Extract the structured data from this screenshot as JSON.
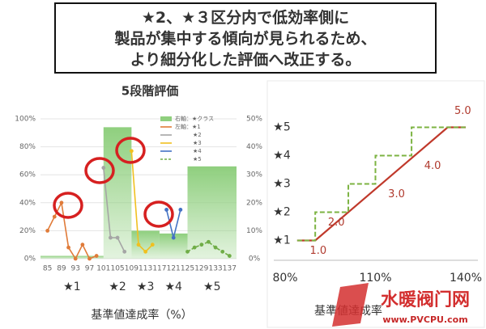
{
  "header": {
    "lines": [
      [
        {
          "text": "★2、★３区分内で"
        },
        {
          "text": "低効率側に",
          "bold": true
        }
      ],
      [
        {
          "text": "製品",
          "bold": true
        },
        {
          "text": "が"
        },
        {
          "text": "集中",
          "bold": true
        },
        {
          "text": "する傾向が見られるため、"
        }
      ],
      [
        {
          "text": "より"
        },
        {
          "text": "細分化",
          "bold": true
        },
        {
          "text": "した"
        },
        {
          "text": "評価",
          "bold": true
        },
        {
          "text": "へ"
        },
        {
          "text": "改正",
          "bold": true
        },
        {
          "text": "する。"
        }
      ]
    ]
  },
  "chart_data": [
    {
      "type": "combo",
      "title": "5段階評価",
      "x_label": "基準値達成率（%）",
      "xlim": [
        83,
        139
      ],
      "xticks": [
        85,
        89,
        93,
        97,
        101,
        105,
        109,
        113,
        117,
        121,
        125,
        129,
        133,
        137
      ],
      "ylim": [
        0,
        100
      ],
      "yticks": [
        {
          "value": 0,
          "label": "0%"
        },
        {
          "value": 20,
          "label": "20%"
        },
        {
          "value": 40,
          "label": "40%"
        },
        {
          "value": 60,
          "label": "60%"
        },
        {
          "value": 80,
          "label": "80%"
        },
        {
          "value": 100,
          "label": "100%"
        }
      ],
      "y2lim": [
        0,
        50
      ],
      "y2ticks": [
        {
          "value": 0,
          "label": "0%"
        },
        {
          "value": 10,
          "label": "10%"
        },
        {
          "value": 20,
          "label": "20%"
        },
        {
          "value": 30,
          "label": "30%"
        },
        {
          "value": 40,
          "label": "40%"
        },
        {
          "value": 50,
          "label": "50%"
        }
      ],
      "categories": [
        "★1",
        "★2",
        "★3",
        "★4",
        "★5"
      ],
      "bars": {
        "name": "右軸：★クラス",
        "color": "#8fcf7e",
        "axis": "y2",
        "bins": [
          83,
          101,
          109,
          117,
          125,
          139
        ],
        "values": [
          1,
          47,
          10,
          9,
          33
        ]
      },
      "series": [
        {
          "name": "左軸：★1",
          "color": "#e07b39",
          "x": [
            85,
            87,
            89,
            91,
            93,
            95,
            97,
            99
          ],
          "values": [
            20,
            30,
            40,
            8,
            0,
            10,
            0,
            2
          ]
        },
        {
          "name": "★2",
          "color": "#a5a5a5",
          "x": [
            101,
            103,
            105,
            107
          ],
          "values": [
            65,
            15,
            15,
            5
          ]
        },
        {
          "name": "★3",
          "color": "#f0c020",
          "x": [
            109,
            111,
            113,
            115
          ],
          "values": [
            77,
            10,
            5,
            10
          ]
        },
        {
          "name": "★4",
          "color": "#4472c4",
          "x": [
            119,
            121,
            123
          ],
          "values": [
            35,
            15,
            35
          ]
        },
        {
          "name": "★5",
          "color": "#70ad47",
          "dashed": true,
          "x": [
            125,
            127,
            129,
            131,
            133,
            135,
            137
          ],
          "values": [
            5,
            8,
            10,
            12,
            8,
            5,
            2
          ]
        }
      ],
      "legend": "upper right"
    },
    {
      "type": "step",
      "x_label": "基準値達成率",
      "xlim": [
        80,
        140
      ],
      "xticks": [
        {
          "value": 80,
          "label": "80%"
        },
        {
          "value": 110,
          "label": "110%"
        },
        {
          "value": 140,
          "label": "140%"
        }
      ],
      "ylim": [
        0.3,
        5.7
      ],
      "yticks": [
        {
          "value": 1,
          "label": "★1"
        },
        {
          "value": 2,
          "label": "★2"
        },
        {
          "value": 3,
          "label": "★3"
        },
        {
          "value": 4,
          "label": "★4"
        },
        {
          "value": 5,
          "label": "★5"
        }
      ],
      "series": [
        {
          "color": "#c0392b",
          "x": [
            84,
            90,
            134,
            140
          ],
          "values": [
            1,
            1,
            5,
            5
          ]
        },
        {
          "color": "#7cb342",
          "dashed": true,
          "x": [
            84,
            90,
            90,
            101,
            101,
            110,
            110,
            122,
            122,
            134,
            134,
            140
          ],
          "values": [
            1,
            1,
            2,
            2,
            3,
            3,
            4,
            4,
            5,
            5,
            5,
            5
          ]
        }
      ],
      "annotations": [
        {
          "label": "1.0",
          "value": 1,
          "x": 91
        },
        {
          "label": "2.0",
          "value": 2,
          "x": 97
        },
        {
          "label": "3.0",
          "value": 3,
          "x": 117
        },
        {
          "label": "4.0",
          "value": 4,
          "x": 129
        },
        {
          "label": "5.0",
          "value": 5,
          "x": 139
        }
      ]
    }
  ],
  "watermark": {
    "name": "水暖阀门网",
    "url": "www.PVCPU.com"
  }
}
